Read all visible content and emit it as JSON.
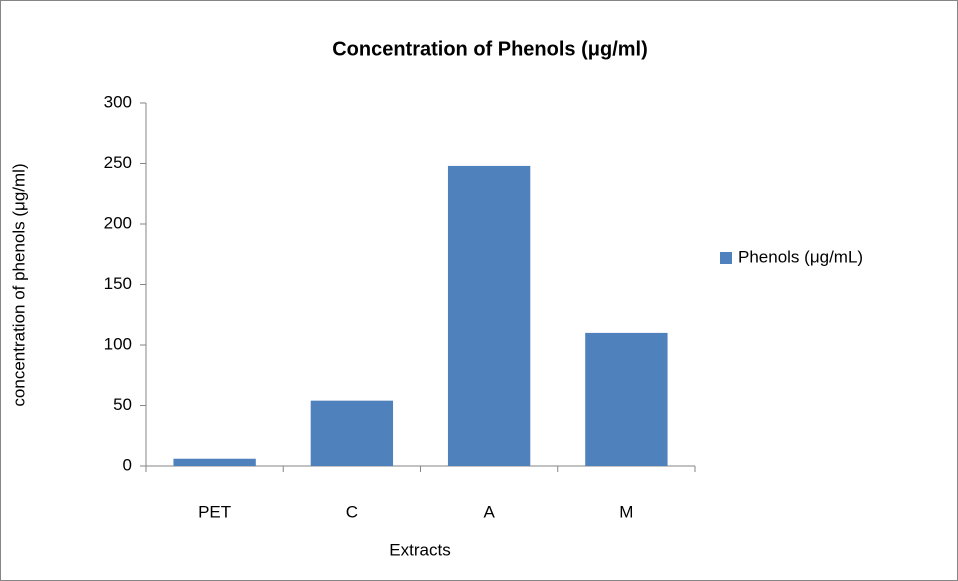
{
  "chart_data": {
    "type": "bar",
    "title": "Concentration of Phenols (μg/ml)",
    "x_label": "Extracts",
    "y_label": "concentration of phenols (μg/ml)",
    "categories": [
      "PET",
      "C",
      "A",
      "M"
    ],
    "series": [
      {
        "name": "Phenols (μg/mL)",
        "color": "#4f81bd",
        "values": [
          6,
          54,
          248,
          110
        ]
      }
    ],
    "ylim": [
      0,
      300
    ],
    "yticks": [
      0,
      50,
      100,
      150,
      200,
      250,
      300
    ],
    "grid": false,
    "legend": "right"
  }
}
